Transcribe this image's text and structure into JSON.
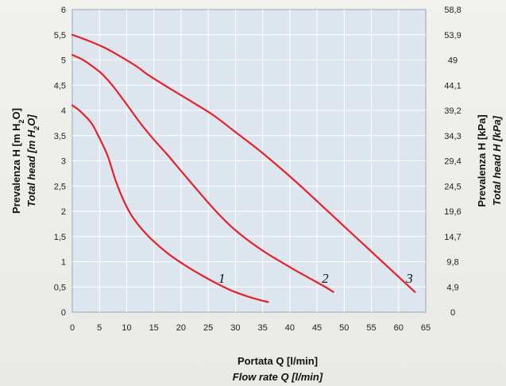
{
  "chart_data": {
    "type": "line",
    "x_axis": {
      "title": "Portata Q [l/min]",
      "subtitle": "Flow rate Q [l/min]",
      "range": [
        0,
        65
      ],
      "ticks": [
        "0",
        "5",
        "10",
        "15",
        "20",
        "25",
        "30",
        "35",
        "40",
        "45",
        "50",
        "55",
        "60",
        "65"
      ]
    },
    "y_axis_left": {
      "title": "Prevalenza H [m H",
      "title_sub": "2",
      "title_end": "O]",
      "subtitle": "Total head [m H",
      "subtitle_sub": "2",
      "subtitle_end": "O]",
      "range": [
        0,
        6
      ],
      "ticks": [
        "0",
        "0,5",
        "1",
        "1,5",
        "2",
        "2,5",
        "3",
        "3,5",
        "4",
        "4,5",
        "5",
        "5,5",
        "6"
      ]
    },
    "y_axis_right": {
      "title": "Prevalenza H [kPa]",
      "subtitle": "Total head H [kPa]",
      "ticks": [
        "0",
        "4,9",
        "9,8",
        "14,7",
        "19,6",
        "24,5",
        "29,4",
        "34,3",
        "39,2",
        "44,1",
        "49",
        "53,9",
        "58,8"
      ]
    },
    "grid": true,
    "colors": {
      "curve": "#e8202a",
      "plot_bg": "#dde6ee",
      "grid": "#ffffff"
    },
    "series": [
      {
        "name": "1",
        "x": [
          0,
          1.5,
          3.5,
          5,
          6.5,
          8,
          9.5,
          11,
          13,
          15,
          17.5,
          20,
          23,
          26,
          29,
          32,
          34.5,
          36
        ],
        "y": [
          4.1,
          3.98,
          3.75,
          3.45,
          3.1,
          2.6,
          2.2,
          1.9,
          1.62,
          1.4,
          1.17,
          0.98,
          0.78,
          0.6,
          0.44,
          0.32,
          0.24,
          0.2
        ]
      },
      {
        "name": "2",
        "x": [
          0,
          2,
          4,
          5.5,
          7.5,
          10,
          12.5,
          15,
          17.5,
          20,
          23,
          26,
          29,
          32,
          35,
          38,
          41,
          44,
          46.5,
          48
        ],
        "y": [
          5.1,
          5.0,
          4.85,
          4.72,
          4.48,
          4.12,
          3.75,
          3.42,
          3.12,
          2.8,
          2.42,
          2.05,
          1.72,
          1.45,
          1.22,
          1.02,
          0.83,
          0.65,
          0.5,
          0.4
        ]
      },
      {
        "name": "3",
        "x": [
          0,
          3,
          6,
          9,
          12,
          14,
          18,
          22,
          26,
          30,
          34,
          38,
          42,
          46,
          50,
          54,
          58,
          61,
          63
        ],
        "y": [
          5.5,
          5.38,
          5.24,
          5.06,
          4.86,
          4.7,
          4.43,
          4.17,
          3.9,
          3.57,
          3.24,
          2.88,
          2.5,
          2.1,
          1.7,
          1.3,
          0.9,
          0.6,
          0.4
        ]
      }
    ],
    "labels": [
      {
        "text": "1",
        "x": 27.5,
        "y": 0.68
      },
      {
        "text": "2",
        "x": 46.5,
        "y": 0.68
      },
      {
        "text": "3",
        "x": 62,
        "y": 0.68
      }
    ]
  }
}
